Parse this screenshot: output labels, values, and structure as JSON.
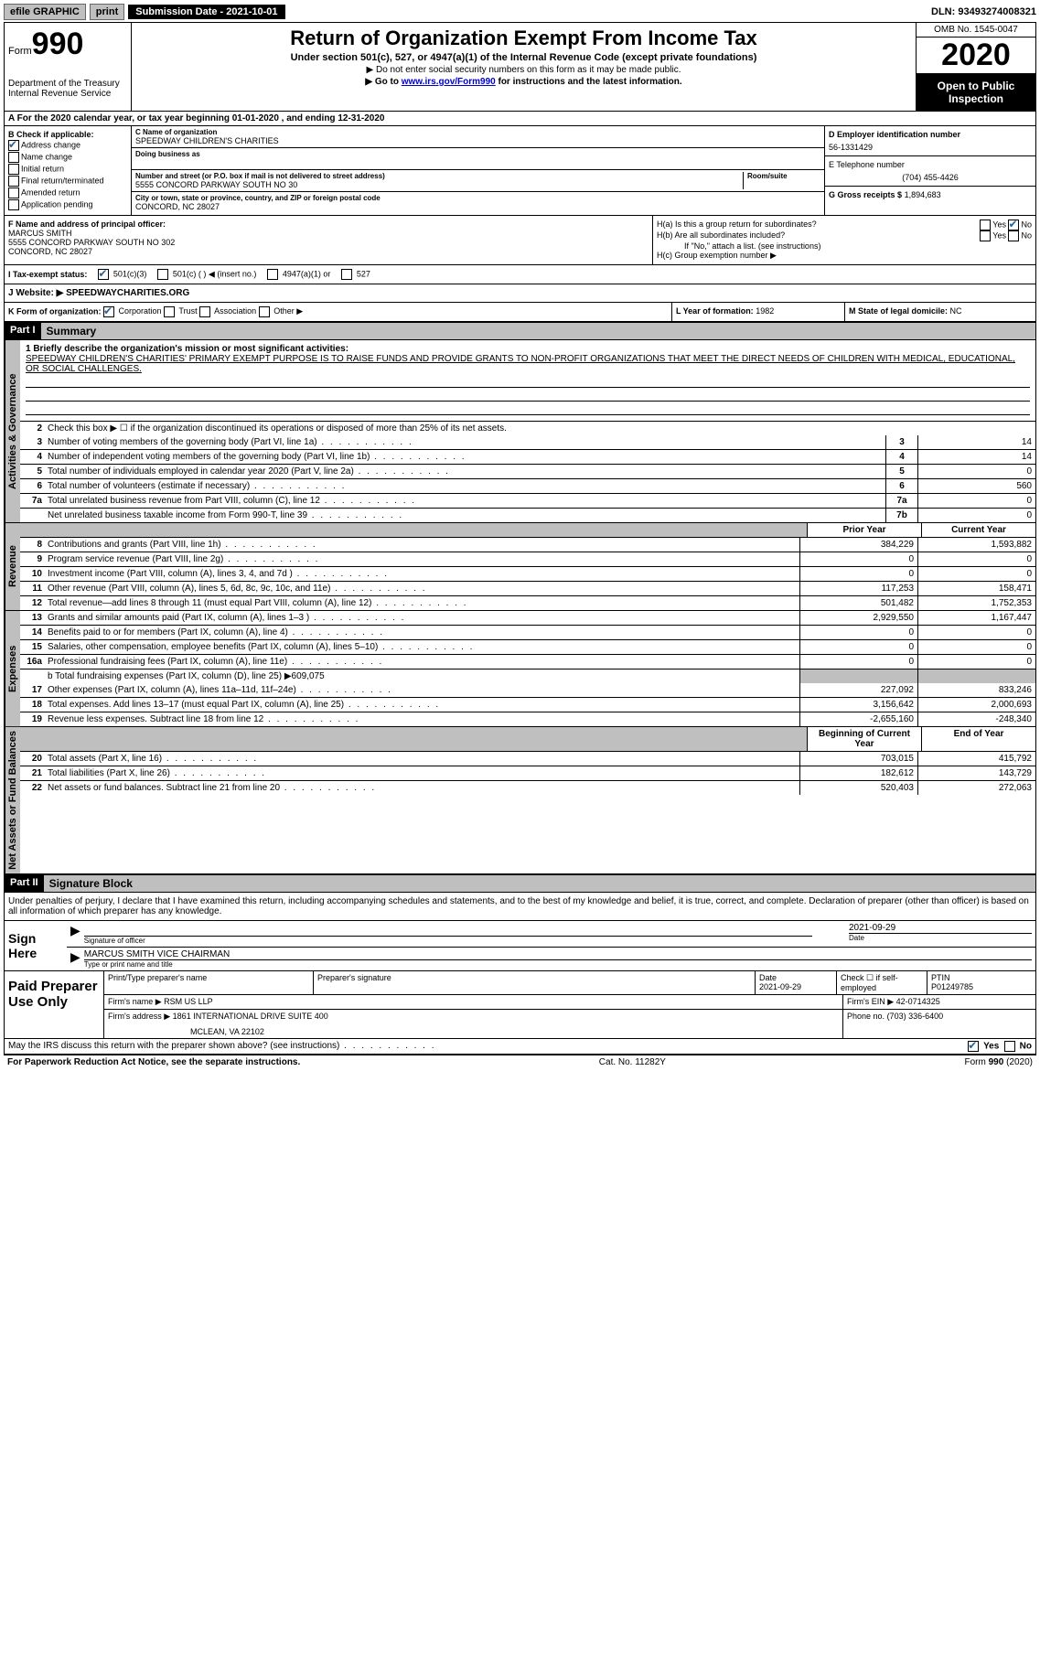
{
  "topbar": {
    "efile": "efile GRAPHIC",
    "print": "print",
    "subdate_label": "Submission Date - 2021-10-01",
    "dln": "DLN: 93493274008321"
  },
  "header": {
    "form_prefix": "Form",
    "form_number": "990",
    "dept": "Department of the Treasury",
    "irs": "Internal Revenue Service",
    "title": "Return of Organization Exempt From Income Tax",
    "sub": "Under section 501(c), 527, or 4947(a)(1) of the Internal Revenue Code (except private foundations)",
    "note1": "▶ Do not enter social security numbers on this form as it may be made public.",
    "note2_pre": "▶ Go to ",
    "note2_link": "www.irs.gov/Form990",
    "note2_post": " for instructions and the latest information.",
    "omb": "OMB No. 1545-0047",
    "year": "2020",
    "inspect1": "Open to Public",
    "inspect2": "Inspection"
  },
  "period": "A For the 2020 calendar year, or tax year beginning 01-01-2020   , and ending 12-31-2020",
  "boxB": {
    "title": "B Check if applicable:",
    "addr": "Address change",
    "name": "Name change",
    "initial": "Initial return",
    "final": "Final return/terminated",
    "amended": "Amended return",
    "app": "Application pending"
  },
  "boxC": {
    "name_label": "C Name of organization",
    "name": "SPEEDWAY CHILDREN'S CHARITIES",
    "dba_label": "Doing business as",
    "addr_label": "Number and street (or P.O. box if mail is not delivered to street address)",
    "room_label": "Room/suite",
    "addr": "5555 CONCORD PARKWAY SOUTH NO 30",
    "city_label": "City or town, state or province, country, and ZIP or foreign postal code",
    "city": "CONCORD, NC  28027"
  },
  "boxD": {
    "label": "D Employer identification number",
    "value": "56-1331429"
  },
  "boxE": {
    "label": "E Telephone number",
    "value": "(704) 455-4426"
  },
  "boxG": {
    "label": "G Gross receipts $",
    "value": "1,894,683"
  },
  "boxF": {
    "label": "F Name and address of principal officer:",
    "name": "MARCUS SMITH",
    "addr1": "5555 CONCORD PARKWAY SOUTH NO 302",
    "addr2": "CONCORD, NC  28027"
  },
  "boxH": {
    "a": "H(a)  Is this a group return for subordinates?",
    "b": "H(b)  Are all subordinates included?",
    "b_note": "If \"No,\" attach a list. (see instructions)",
    "c": "H(c)  Group exemption number ▶",
    "yes": "Yes",
    "no": "No"
  },
  "status": {
    "label": "I   Tax-exempt status:",
    "c3": "501(c)(3)",
    "c": "501(c) (  ) ◀ (insert no.)",
    "a1": "4947(a)(1) or",
    "s527": "527"
  },
  "website": {
    "label": "J   Website: ▶",
    "value": "SPEEDWAYCHARITIES.ORG"
  },
  "boxK": {
    "label": "K Form of organization:",
    "corp": "Corporation",
    "trust": "Trust",
    "assoc": "Association",
    "other": "Other ▶"
  },
  "boxL": {
    "label": "L Year of formation:",
    "value": "1982"
  },
  "boxM": {
    "label": "M State of legal domicile:",
    "value": "NC"
  },
  "parts": {
    "p1": "Part I",
    "p1_title": "Summary",
    "p2": "Part II",
    "p2_title": "Signature Block"
  },
  "vtabs": {
    "gov": "Activities & Governance",
    "rev": "Revenue",
    "exp": "Expenses",
    "net": "Net Assets or Fund Balances"
  },
  "mission": {
    "label": "1   Briefly describe the organization's mission or most significant activities:",
    "text": "SPEEDWAY CHILDREN'S CHARITIES' PRIMARY EXEMPT PURPOSE IS TO RAISE FUNDS AND PROVIDE GRANTS TO NON-PROFIT ORGANIZATIONS THAT MEET THE DIRECT NEEDS OF CHILDREN WITH MEDICAL, EDUCATIONAL, OR SOCIAL CHALLENGES."
  },
  "line2": "Check this box ▶ ☐  if the organization discontinued its operations or disposed of more than 25% of its net assets.",
  "cols": {
    "prior": "Prior Year",
    "current": "Current Year",
    "begin": "Beginning of Current Year",
    "end": "End of Year"
  },
  "gov_lines": [
    {
      "n": "3",
      "d": "Number of voting members of the governing body (Part VI, line 1a)",
      "b": "3",
      "v": "14"
    },
    {
      "n": "4",
      "d": "Number of independent voting members of the governing body (Part VI, line 1b)",
      "b": "4",
      "v": "14"
    },
    {
      "n": "5",
      "d": "Total number of individuals employed in calendar year 2020 (Part V, line 2a)",
      "b": "5",
      "v": "0"
    },
    {
      "n": "6",
      "d": "Total number of volunteers (estimate if necessary)",
      "b": "6",
      "v": "560"
    },
    {
      "n": "7a",
      "d": "Total unrelated business revenue from Part VIII, column (C), line 12",
      "b": "7a",
      "v": "0"
    },
    {
      "n": "",
      "d": "Net unrelated business taxable income from Form 990-T, line 39",
      "b": "7b",
      "v": "0"
    }
  ],
  "rev_lines": [
    {
      "n": "8",
      "d": "Contributions and grants (Part VIII, line 1h)",
      "p": "384,229",
      "c": "1,593,882"
    },
    {
      "n": "9",
      "d": "Program service revenue (Part VIII, line 2g)",
      "p": "0",
      "c": "0"
    },
    {
      "n": "10",
      "d": "Investment income (Part VIII, column (A), lines 3, 4, and 7d )",
      "p": "0",
      "c": "0"
    },
    {
      "n": "11",
      "d": "Other revenue (Part VIII, column (A), lines 5, 6d, 8c, 9c, 10c, and 11e)",
      "p": "117,253",
      "c": "158,471"
    },
    {
      "n": "12",
      "d": "Total revenue—add lines 8 through 11 (must equal Part VIII, column (A), line 12)",
      "p": "501,482",
      "c": "1,752,353"
    }
  ],
  "exp_lines": [
    {
      "n": "13",
      "d": "Grants and similar amounts paid (Part IX, column (A), lines 1–3 )",
      "p": "2,929,550",
      "c": "1,167,447"
    },
    {
      "n": "14",
      "d": "Benefits paid to or for members (Part IX, column (A), line 4)",
      "p": "0",
      "c": "0"
    },
    {
      "n": "15",
      "d": "Salaries, other compensation, employee benefits (Part IX, column (A), lines 5–10)",
      "p": "0",
      "c": "0"
    },
    {
      "n": "16a",
      "d": "Professional fundraising fees (Part IX, column (A), line 11e)",
      "p": "0",
      "c": "0"
    }
  ],
  "line16b": "b  Total fundraising expenses (Part IX, column (D), line 25) ▶609,075",
  "exp_lines2": [
    {
      "n": "17",
      "d": "Other expenses (Part IX, column (A), lines 11a–11d, 11f–24e)",
      "p": "227,092",
      "c": "833,246"
    },
    {
      "n": "18",
      "d": "Total expenses. Add lines 13–17 (must equal Part IX, column (A), line 25)",
      "p": "3,156,642",
      "c": "2,000,693"
    },
    {
      "n": "19",
      "d": "Revenue less expenses. Subtract line 18 from line 12",
      "p": "-2,655,160",
      "c": "-248,340"
    }
  ],
  "net_lines": [
    {
      "n": "20",
      "d": "Total assets (Part X, line 16)",
      "p": "703,015",
      "c": "415,792"
    },
    {
      "n": "21",
      "d": "Total liabilities (Part X, line 26)",
      "p": "182,612",
      "c": "143,729"
    },
    {
      "n": "22",
      "d": "Net assets or fund balances. Subtract line 21 from line 20",
      "p": "520,403",
      "c": "272,063"
    }
  ],
  "sig": {
    "decl": "Under penalties of perjury, I declare that I have examined this return, including accompanying schedules and statements, and to the best of my knowledge and belief, it is true, correct, and complete. Declaration of preparer (other than officer) is based on all information of which preparer has any knowledge.",
    "sign_here": "Sign Here",
    "sig_officer": "Signature of officer",
    "date": "Date",
    "date_val": "2021-09-29",
    "name_title": "MARCUS SMITH  VICE CHAIRMAN",
    "type_name": "Type or print name and title"
  },
  "paid": {
    "title": "Paid Preparer Use Only",
    "h_name": "Print/Type preparer's name",
    "h_sig": "Preparer's signature",
    "h_date": "Date",
    "date_val": "2021-09-29",
    "h_check": "Check ☐ if self-employed",
    "h_ptin": "PTIN",
    "ptin": "P01249785",
    "firm_label": "Firm's name    ▶",
    "firm": "RSM US LLP",
    "ein_label": "Firm's EIN ▶",
    "ein": "42-0714325",
    "addr_label": "Firm's address ▶",
    "addr1": "1861 INTERNATIONAL DRIVE SUITE 400",
    "addr2": "MCLEAN, VA  22102",
    "phone_label": "Phone no.",
    "phone": "(703) 336-6400"
  },
  "discuss": {
    "q": "May the IRS discuss this return with the preparer shown above? (see instructions)",
    "yes": "Yes",
    "no": "No"
  },
  "footer": {
    "pra": "For Paperwork Reduction Act Notice, see the separate instructions.",
    "cat": "Cat. No. 11282Y",
    "form": "Form 990 (2020)"
  }
}
